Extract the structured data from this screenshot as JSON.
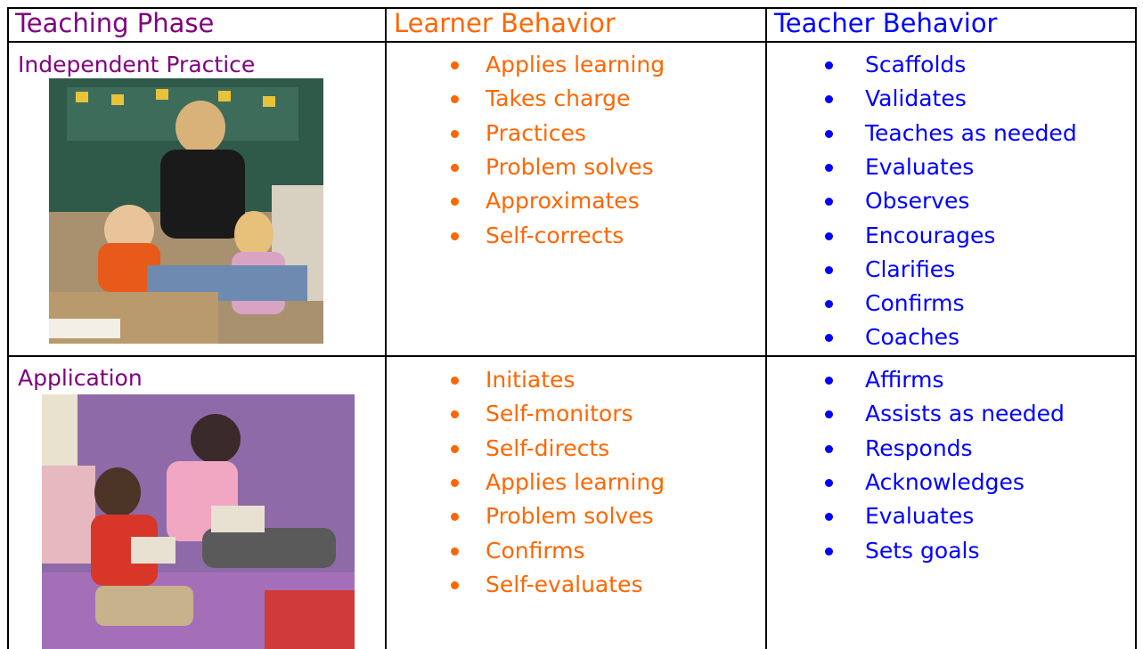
{
  "table": {
    "header": [
      "Teaching Phase",
      "Learner Behavior",
      "Teacher Behavior"
    ],
    "rows": [
      {
        "phase": "Independent Practice",
        "learner": [
          "Applies learning",
          "Takes charge",
          "Practices",
          "Problem solves",
          "Approximates",
          "Self-corrects"
        ],
        "teacher": [
          "Scaffolds",
          "Validates",
          "Teaches as needed",
          "Evaluates",
          "Observes",
          "Encourages",
          "Clarifies",
          "Confirms",
          "Coaches"
        ]
      },
      {
        "phase": "Application",
        "learner": [
          "Initiates",
          "Self-monitors",
          "Self-directs",
          "Applies learning",
          "Problem solves",
          "Confirms",
          "Self-evaluates"
        ],
        "teacher": [
          "Affirms",
          "Assists as needed",
          "Responds",
          "Acknowledges",
          "Evaluates",
          "Sets goals"
        ]
      }
    ]
  }
}
